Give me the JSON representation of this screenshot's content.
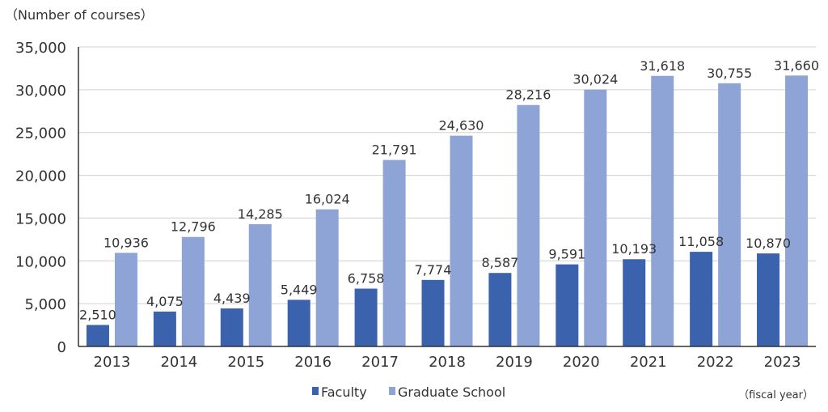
{
  "chart_data": {
    "type": "bar",
    "ylabel": "（Number of courses）",
    "xlabel": "（fiscal year）",
    "categories": [
      "2013",
      "2014",
      "2015",
      "2016",
      "2017",
      "2018",
      "2019",
      "2020",
      "2021",
      "2022",
      "2023"
    ],
    "series": [
      {
        "name": "Faculty",
        "color": "#3a62ad",
        "values": [
          2510,
          4075,
          4439,
          5449,
          6758,
          7774,
          8587,
          9591,
          10193,
          11058,
          10870
        ],
        "labels": [
          "2,510",
          "4,075",
          "4,439",
          "5,449",
          "6,758",
          "7,774",
          "8,587",
          "9,591",
          "10,193",
          "11,058",
          "10,870"
        ]
      },
      {
        "name": "Graduate School",
        "color": "#8fa4d6",
        "values": [
          10936,
          12796,
          14285,
          16024,
          21791,
          24630,
          28216,
          30024,
          31618,
          30755,
          31660
        ],
        "labels": [
          "10,936",
          "12,796",
          "14,285",
          "16,024",
          "21,791",
          "24,630",
          "28,216",
          "30,024",
          "31,618",
          "30,755",
          "31,660"
        ]
      }
    ],
    "ylim": [
      0,
      35000
    ],
    "yticks": [
      "0",
      "5,000",
      "10,000",
      "15,000",
      "20,000",
      "25,000",
      "30,000",
      "35,000"
    ],
    "grid": true,
    "legend": "bottom"
  }
}
